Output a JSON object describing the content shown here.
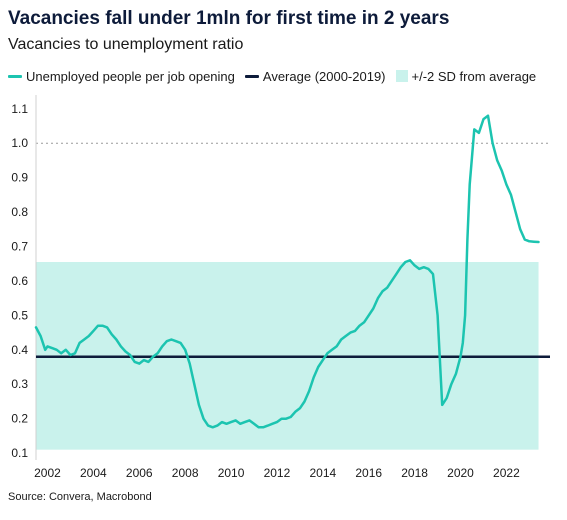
{
  "chart_data": {
    "type": "line",
    "title": "Vacancies fall under 1mln for first time in 2 years",
    "subtitle": "Vacancies to unemployment ratio",
    "source": "Source: Convera, Macrobond",
    "xlabel": "",
    "ylabel": "",
    "xlim": [
      2001.5,
      2023.9
    ],
    "ylim": [
      0.08,
      1.14
    ],
    "x_ticks": [
      2002,
      2004,
      2006,
      2008,
      2010,
      2012,
      2014,
      2016,
      2018,
      2020,
      2022
    ],
    "x_tick_labels": [
      "2002",
      "2004",
      "2006",
      "2008",
      "2010",
      "2012",
      "2014",
      "2016",
      "2018",
      "2020",
      "2022"
    ],
    "y_ticks": [
      0.1,
      0.2,
      0.3,
      0.4,
      0.5,
      0.6,
      0.7,
      0.8,
      0.9,
      1.0,
      1.1
    ],
    "y_tick_labels": [
      "0.1",
      "0.2",
      "0.3",
      "0.4",
      "0.5",
      "0.6",
      "0.7",
      "0.8",
      "0.9",
      "1.0",
      "1.1"
    ],
    "legend_position": "top",
    "grid": false,
    "reference_line": {
      "y": 1.0,
      "style": "dotted"
    },
    "series": [
      {
        "name": "Unemployed people per job opening",
        "type": "line",
        "color": "#1cc4b0",
        "x": [
          2001.5,
          2001.7,
          2001.9,
          2002.0,
          2002.2,
          2002.4,
          2002.6,
          2002.8,
          2003.0,
          2003.2,
          2003.4,
          2003.6,
          2003.8,
          2004.0,
          2004.2,
          2004.4,
          2004.6,
          2004.8,
          2005.0,
          2005.2,
          2005.4,
          2005.6,
          2005.8,
          2006.0,
          2006.2,
          2006.4,
          2006.6,
          2006.8,
          2007.0,
          2007.2,
          2007.4,
          2007.6,
          2007.8,
          2008.0,
          2008.2,
          2008.4,
          2008.6,
          2008.8,
          2009.0,
          2009.2,
          2009.4,
          2009.6,
          2009.8,
          2010.0,
          2010.2,
          2010.4,
          2010.6,
          2010.8,
          2011.0,
          2011.2,
          2011.4,
          2011.6,
          2011.8,
          2012.0,
          2012.2,
          2012.4,
          2012.6,
          2012.8,
          2013.0,
          2013.2,
          2013.4,
          2013.6,
          2013.8,
          2014.0,
          2014.2,
          2014.4,
          2014.6,
          2014.8,
          2015.0,
          2015.2,
          2015.4,
          2015.6,
          2015.8,
          2016.0,
          2016.2,
          2016.4,
          2016.6,
          2016.8,
          2017.0,
          2017.2,
          2017.4,
          2017.6,
          2017.8,
          2018.0,
          2018.2,
          2018.4,
          2018.6,
          2018.8,
          2019.0,
          2019.2,
          2019.4,
          2019.6,
          2019.8,
          2020.0,
          2020.1,
          2020.2,
          2020.3,
          2020.4,
          2020.5,
          2020.6,
          2020.8,
          2021.0,
          2021.2,
          2021.4,
          2021.6,
          2021.8,
          2022.0,
          2022.2,
          2022.4,
          2022.6,
          2022.8,
          2023.0,
          2023.2,
          2023.4
        ],
        "y": [
          0.465,
          0.44,
          0.4,
          0.41,
          0.405,
          0.4,
          0.39,
          0.4,
          0.385,
          0.39,
          0.42,
          0.43,
          0.44,
          0.455,
          0.47,
          0.47,
          0.465,
          0.445,
          0.43,
          0.41,
          0.395,
          0.385,
          0.365,
          0.36,
          0.37,
          0.365,
          0.38,
          0.39,
          0.41,
          0.425,
          0.43,
          0.425,
          0.42,
          0.4,
          0.36,
          0.3,
          0.24,
          0.2,
          0.18,
          0.175,
          0.18,
          0.19,
          0.185,
          0.19,
          0.195,
          0.185,
          0.19,
          0.195,
          0.185,
          0.175,
          0.175,
          0.18,
          0.185,
          0.19,
          0.2,
          0.2,
          0.205,
          0.22,
          0.23,
          0.25,
          0.28,
          0.32,
          0.35,
          0.37,
          0.39,
          0.4,
          0.41,
          0.43,
          0.44,
          0.45,
          0.455,
          0.47,
          0.48,
          0.5,
          0.52,
          0.55,
          0.57,
          0.58,
          0.6,
          0.62,
          0.64,
          0.655,
          0.66,
          0.645,
          0.635,
          0.64,
          0.635,
          0.62,
          0.5,
          0.24,
          0.26,
          0.3,
          0.33,
          0.38,
          0.42,
          0.5,
          0.72,
          0.88,
          0.96,
          1.04,
          1.03,
          1.07,
          1.08,
          1.0,
          0.95,
          0.92,
          0.88,
          0.85,
          0.8,
          0.75,
          0.72,
          0.715,
          0.714,
          0.713
        ]
      },
      {
        "name": "Average (2000-2019)",
        "type": "hline",
        "color": "#0d1b3a",
        "value": 0.38
      },
      {
        "name": "+/-2 SD from average",
        "type": "band",
        "color": "#c9f2ec",
        "low": 0.11,
        "high": 0.655
      }
    ]
  }
}
